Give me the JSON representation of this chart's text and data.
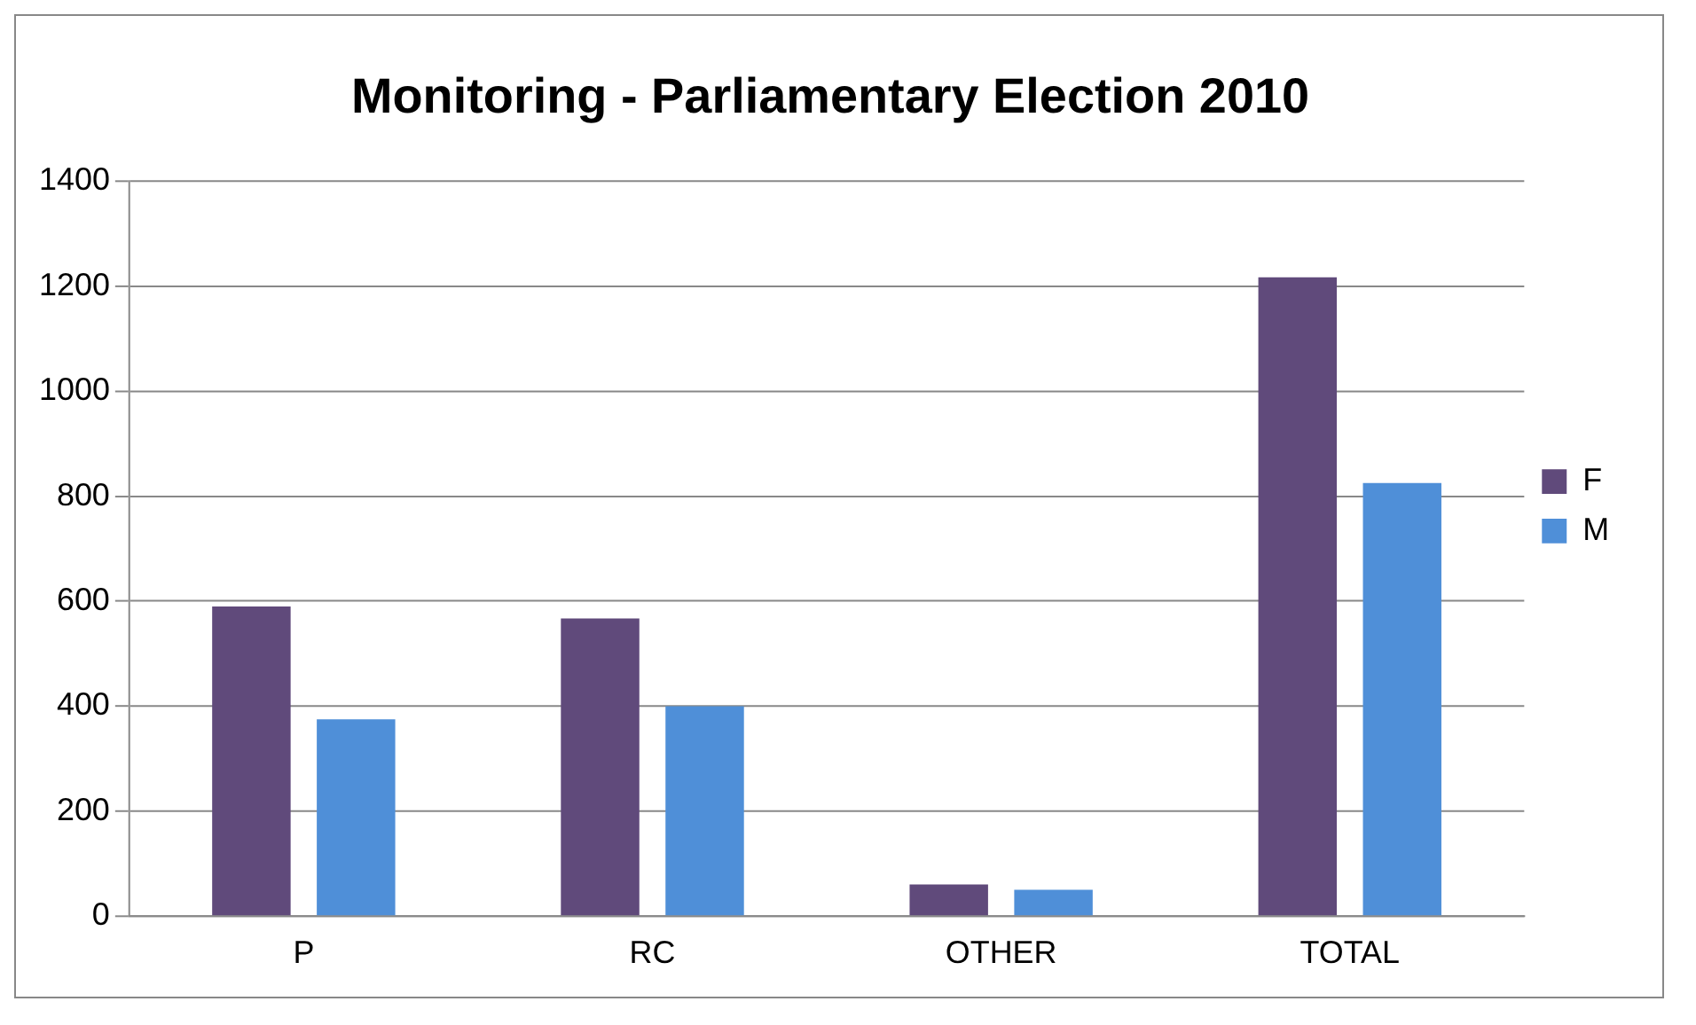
{
  "chart_data": {
    "type": "bar",
    "title": "Monitoring - Parliamentary Election 2010",
    "categories": [
      "P",
      "RC",
      "OTHER",
      "TOTAL"
    ],
    "series": [
      {
        "name": "F",
        "color": "#604a7b",
        "values": [
          590,
          567,
          60,
          1217
        ]
      },
      {
        "name": "M",
        "color": "#4f8fd8",
        "values": [
          375,
          400,
          50,
          825
        ]
      }
    ],
    "ylim": [
      0,
      1400
    ],
    "yticks": [
      0,
      200,
      400,
      600,
      800,
      1000,
      1200,
      1400
    ],
    "grid": "y",
    "legend": "right"
  }
}
